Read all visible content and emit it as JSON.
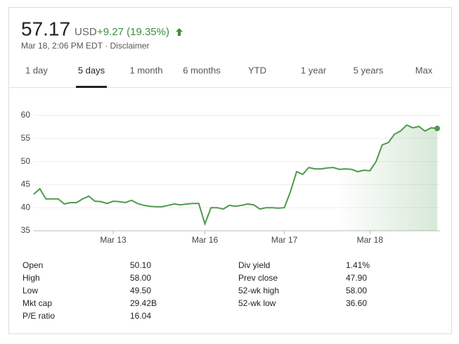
{
  "header": {
    "price": "57.17",
    "currency": "USD",
    "change": "+9.27 (19.35%)",
    "subtitle": "Mar 18, 2:06 PM EDT · Disclaimer"
  },
  "tabs": {
    "items": [
      "1 day",
      "5 days",
      "1 month",
      "6 months",
      "YTD",
      "1 year",
      "5 years",
      "Max"
    ],
    "selected": 1
  },
  "chart_data": {
    "type": "line",
    "color": "#4e9a4e",
    "grid": true,
    "categories": [
      null,
      null,
      null,
      null,
      null,
      null,
      null,
      null,
      null,
      null,
      null,
      null,
      null,
      "Mar 13",
      null,
      null,
      null,
      null,
      null,
      null,
      null,
      null,
      null,
      null,
      null,
      null,
      null,
      null,
      "Mar 16",
      null,
      null,
      null,
      null,
      null,
      null,
      null,
      null,
      null,
      null,
      null,
      null,
      "Mar 17",
      null,
      null,
      null,
      null,
      null,
      null,
      null,
      null,
      null,
      null,
      null,
      null,
      null,
      "Mar 18",
      null,
      null,
      null,
      null,
      null,
      null,
      null,
      null,
      null,
      null,
      null
    ],
    "values": [
      42.9,
      44.1,
      41.9,
      41.9,
      41.9,
      40.8,
      41.1,
      41.1,
      41.9,
      42.5,
      41.4,
      41.3,
      40.9,
      41.4,
      41.3,
      41.1,
      41.6,
      40.9,
      40.5,
      40.3,
      40.2,
      40.2,
      40.5,
      40.8,
      40.6,
      40.8,
      40.9,
      40.9,
      36.5,
      40.0,
      40.0,
      39.7,
      40.5,
      40.3,
      40.5,
      40.8,
      40.6,
      39.7,
      40.0,
      40.0,
      39.9,
      40.0,
      43.5,
      47.8,
      47.2,
      48.7,
      48.4,
      48.4,
      48.6,
      48.7,
      48.3,
      48.4,
      48.3,
      47.8,
      48.1,
      48.0,
      50.0,
      53.6,
      54.1,
      55.9,
      56.6,
      57.9,
      57.3,
      57.6,
      56.6,
      57.3,
      57.17
    ],
    "ylim": [
      35,
      60
    ],
    "yticks": [
      35,
      40,
      45,
      50,
      55,
      60
    ]
  },
  "stats": {
    "left": [
      [
        "Open",
        "50.10"
      ],
      [
        "High",
        "58.00"
      ],
      [
        "Low",
        "49.50"
      ],
      [
        "Mkt cap",
        "29.42B"
      ],
      [
        "P/E ratio",
        "16.04"
      ]
    ],
    "right": [
      [
        "Div yield",
        "1.41%"
      ],
      [
        "Prev close",
        "47.90"
      ],
      [
        "52-wk high",
        "58.00"
      ],
      [
        "52-wk low",
        "36.60"
      ]
    ]
  }
}
